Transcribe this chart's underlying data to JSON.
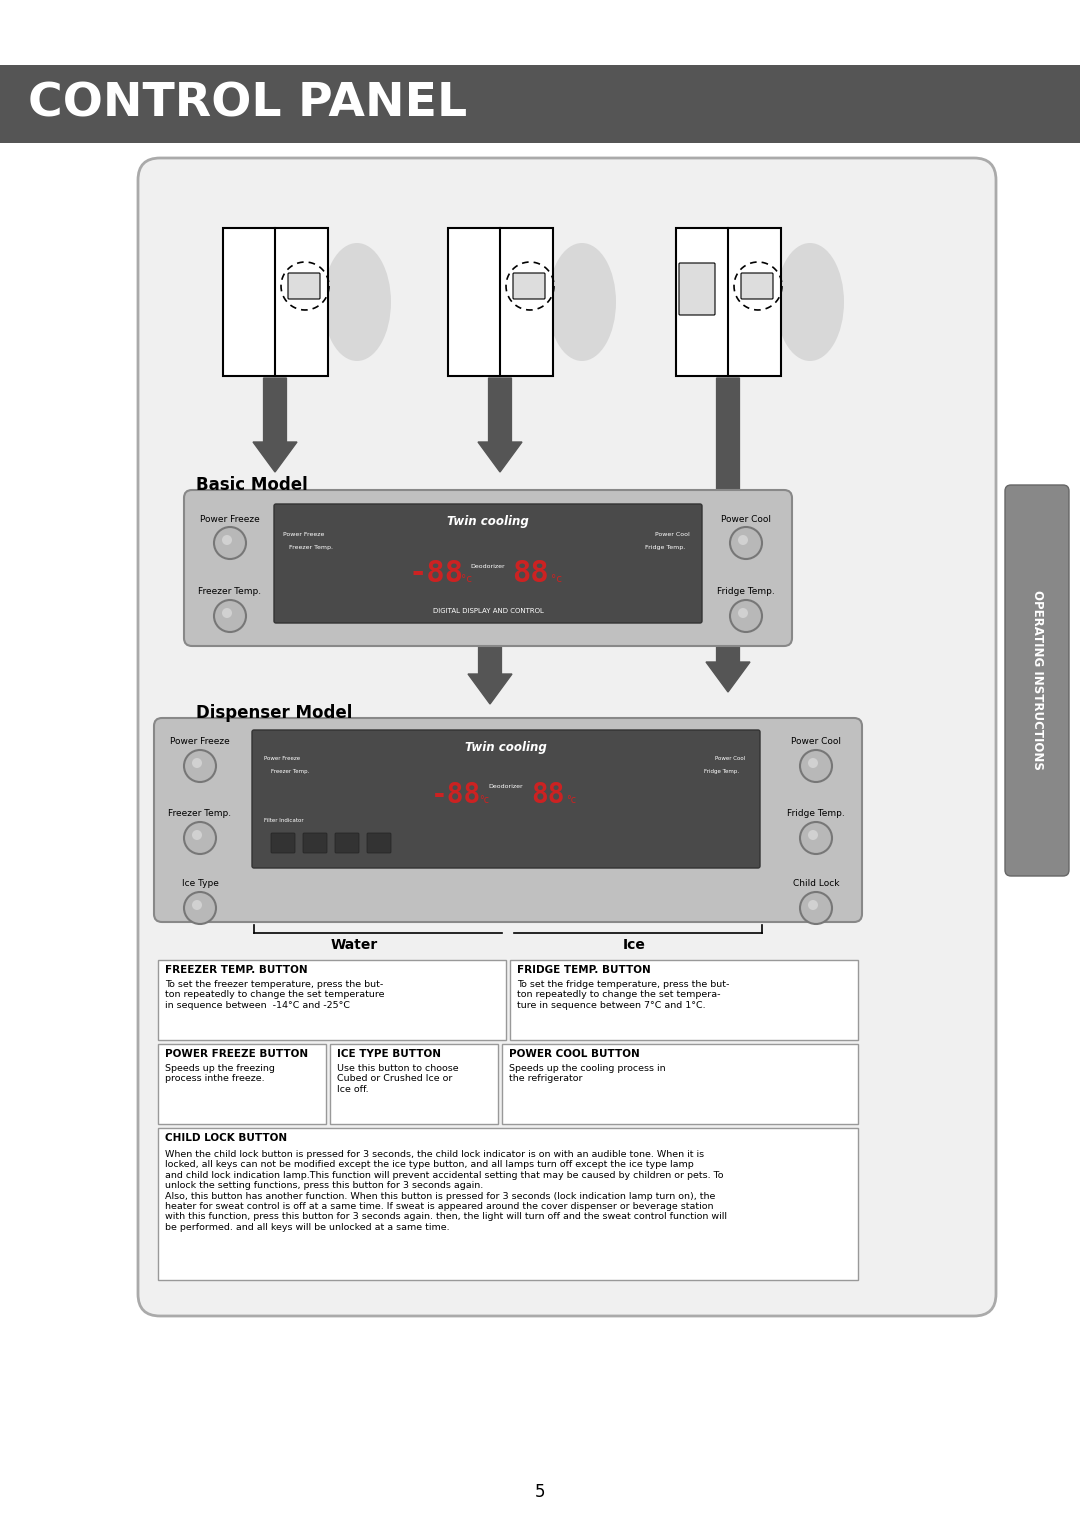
{
  "title": "CONTROL PANEL",
  "title_bg": "#555555",
  "title_color": "#ffffff",
  "page_bg": "#ffffff",
  "basic_model_label": "Basic Model",
  "dispenser_model_label": "Dispenser Model",
  "twin_cooling": "Twin cooling",
  "digital_display": "DIGITAL DISPLAY AND CONTROL",
  "water_label": "Water",
  "ice_label": "Ice",
  "page_number": "5",
  "side_label": "OPERATING INSTRUCTIONS",
  "freezer_temp_btn_title": "FREEZER TEMP. BUTTON",
  "freezer_temp_btn_text": "To set the freezer temperature, press the but-\nton repeatedly to change the set temperature\nin sequence between  -14°C and -25°C",
  "fridge_temp_btn_title": "FRIDGE TEMP. BUTTON",
  "fridge_temp_btn_text": "To set the fridge temperature, press the but-\nton repeatedly to change the set tempera-\nture in sequence between 7°C and 1°C.",
  "power_freeze_btn_title": "POWER FREEZE BUTTON",
  "power_freeze_btn_text": "Speeds up the freezing\nprocess inthe freeze.",
  "ice_type_btn_title": "ICE TYPE BUTTON",
  "ice_type_btn_text": "Use this button to choose\nCubed or Crushed Ice or\nIce off.",
  "power_cool_btn_title": "POWER COOL BUTTON",
  "power_cool_btn_text": "Speeds up the cooling process in\nthe refrigerator",
  "child_lock_btn_title": "CHILD LOCK BUTTON",
  "child_lock_btn_text": "When the child lock button is pressed for 3 seconds, the child lock indicator is on with an audible tone. When it is\nlocked, all keys can not be modified except the ice type button, and all lamps turn off except the ice type lamp\nand child lock indication lamp.This function will prevent accidental setting that may be caused by children or pets. To\nunlock the setting functions, press this button for 3 seconds again.\nAlso, this button has another function. When this button is pressed for 3 seconds (lock indication lamp turn on), the\nheater for sweat control is off at a same time. If sweat is appeared around the cover dispenser or beverage station\nwith this function, press this button for 3 seconds again. then, the light will turn off and the sweat control function will\nbe performed. and all keys will be unlocked at a same time."
}
